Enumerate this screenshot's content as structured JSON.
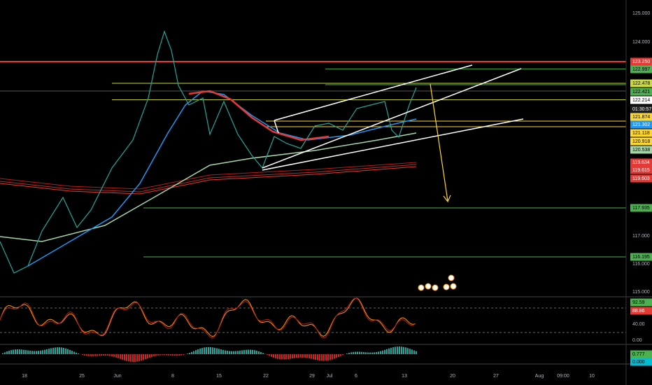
{
  "price_axis": [
    "125.000",
    "124.000",
    "123.250",
    "122.997",
    "122.478",
    "122.421",
    "122.214",
    "01:30:57",
    "121.874",
    "121.302",
    "121.118",
    "120.918",
    "120.538",
    "119.634",
    "119.615",
    "119.603",
    "117.935",
    "117.000",
    "116.195",
    "116.000",
    "115.000"
  ],
  "oscillator_axis": [
    "92.59",
    "88.86",
    "40.00",
    "0.00"
  ],
  "macd_axis": [
    "0.777",
    "0.000"
  ],
  "time_axis": [
    "18",
    "25",
    "Jun",
    "8",
    "15",
    "22",
    "29",
    "Jul",
    "6",
    "13",
    "20",
    "27",
    "Aug",
    "09:00",
    "10"
  ]
}
